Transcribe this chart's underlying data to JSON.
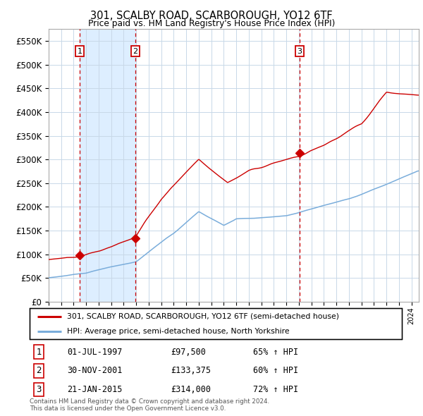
{
  "title": "301, SCALBY ROAD, SCARBOROUGH, YO12 6TF",
  "subtitle": "Price paid vs. HM Land Registry's House Price Index (HPI)",
  "legend_line1": "301, SCALBY ROAD, SCARBOROUGH, YO12 6TF (semi-detached house)",
  "legend_line2": "HPI: Average price, semi-detached house, North Yorkshire",
  "footer_line1": "Contains HM Land Registry data © Crown copyright and database right 2024.",
  "footer_line2": "This data is licensed under the Open Government Licence v3.0.",
  "transactions": [
    {
      "num": 1,
      "date": "01-JUL-1997",
      "price": 97500,
      "price_str": "£97,500",
      "hpi_pct": "65% ↑ HPI"
    },
    {
      "num": 2,
      "date": "30-NOV-2001",
      "price": 133375,
      "price_str": "£133,375",
      "hpi_pct": "60% ↑ HPI"
    },
    {
      "num": 3,
      "date": "21-JAN-2015",
      "price": 314000,
      "price_str": "£314,000",
      "hpi_pct": "72% ↑ HPI"
    }
  ],
  "transaction_dates_decimal": [
    1997.5,
    2001.917,
    2015.055
  ],
  "transaction_prices": [
    97500,
    133375,
    314000
  ],
  "ylim": [
    0,
    575000
  ],
  "yticks": [
    0,
    50000,
    100000,
    150000,
    200000,
    250000,
    300000,
    350000,
    400000,
    450000,
    500000,
    550000
  ],
  "xlim_start": 1995.0,
  "xlim_end": 2024.58,
  "red_color": "#cc0000",
  "blue_color": "#7aaddb",
  "background_color": "#ffffff",
  "plot_bg_color": "#ffffff",
  "shaded_color": "#ddeeff",
  "grid_color": "#c8d8e8",
  "vline_color": "#cc0000"
}
